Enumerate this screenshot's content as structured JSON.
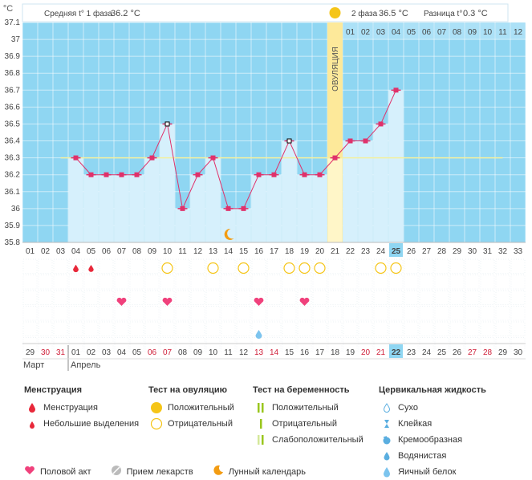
{
  "header": {
    "unit": "°C",
    "phase1_label": "Средняя t° 1 фаза",
    "phase1_value": "36.2 °C",
    "phase2_label": "2 фаза",
    "phase2_value": "36.5 °C",
    "diff_label": "Разница t°",
    "diff_value": "0.3 °C",
    "ovulation_label": "ОВУЛЯЦИЯ"
  },
  "colors": {
    "sky": "#8fd6f2",
    "bar": "#d6f0fc",
    "line": "#e0316a",
    "coverline": "#f3f0a0",
    "ovulation": "#fde99a",
    "pink": "#f0417c",
    "red": "#e8283a",
    "yellow": "#f5c518",
    "orange": "#f39c12"
  },
  "chart_data": {
    "type": "line",
    "title": "",
    "ylabel": "°C",
    "ylim": [
      35.8,
      37.1
    ],
    "yticks": [
      "37.1",
      "37",
      "36.9",
      "36.8",
      "36.7",
      "36.6",
      "36.5",
      "36.4",
      "36.3",
      "36.2",
      "36.1",
      "36",
      "35.9",
      "35.8"
    ],
    "cycle_days": [
      "01",
      "02",
      "03",
      "04",
      "05",
      "06",
      "07",
      "08",
      "09",
      "10",
      "11",
      "12",
      "13",
      "14",
      "15",
      "16",
      "17",
      "18",
      "19",
      "20",
      "21",
      "22",
      "23",
      "24",
      "25",
      "26",
      "27",
      "28",
      "29",
      "30",
      "31",
      "32",
      "33"
    ],
    "phase2_header_days": [
      "01",
      "02",
      "03",
      "04",
      "05",
      "06",
      "07",
      "08",
      "09",
      "10",
      "11",
      "12"
    ],
    "temperatures": [
      null,
      null,
      null,
      36.3,
      36.2,
      36.2,
      36.2,
      36.2,
      36.3,
      36.5,
      36.0,
      36.2,
      36.3,
      36.0,
      36.0,
      36.2,
      36.2,
      36.4,
      36.2,
      36.2,
      36.3,
      36.4,
      36.4,
      36.5,
      36.7,
      null,
      null,
      null,
      null,
      null,
      null,
      null,
      null
    ],
    "coverline": 36.3,
    "ovulation_day": "21",
    "current_day": "25",
    "dates": [
      "29",
      "30",
      "31",
      "01",
      "02",
      "03",
      "04",
      "05",
      "06",
      "07",
      "08",
      "09",
      "10",
      "11",
      "12",
      "13",
      "14",
      "15",
      "16",
      "17",
      "18",
      "19",
      "20",
      "21",
      "22",
      "23",
      "24",
      "25",
      "26",
      "27",
      "28",
      "29",
      "30"
    ],
    "red_dates_idx": [
      1,
      2,
      8,
      9,
      15,
      16,
      22,
      23,
      29,
      30
    ],
    "current_date": "22",
    "months": [
      "Март",
      "Апрель"
    ],
    "menstruation_full_idx": [
      3
    ],
    "menstruation_light_idx": [
      4
    ],
    "ovulation_test_negative_idx": [
      9,
      12,
      14,
      17,
      18,
      19,
      23,
      24
    ],
    "intercourse_idx": [
      6,
      9,
      15,
      18
    ],
    "moon_idx": [
      13
    ],
    "egg_white_idx": [
      15
    ]
  },
  "legend": {
    "menstruation_title": "Менструация",
    "menstruation_full": "Менструация",
    "menstruation_light": "Небольшие выделения",
    "ovulation_test_title": "Тест на овуляцию",
    "ovulation_positive": "Положительный",
    "ovulation_negative": "Отрицательный",
    "pregnancy_test_title": "Тест на беременность",
    "pregnancy_positive": "Положительный",
    "pregnancy_negative": "Отрицательный",
    "pregnancy_weak": "Слабоположительный",
    "cervical_title": "Цервикальная жидкость",
    "cervical_dry": "Сухо",
    "cervical_sticky": "Клейкая",
    "cervical_creamy": "Кремообразная",
    "cervical_watery": "Водянистая",
    "cervical_eggwhite": "Яичный белок",
    "intercourse": "Половой акт",
    "medication": "Прием лекарств",
    "moon": "Лунный календарь"
  }
}
